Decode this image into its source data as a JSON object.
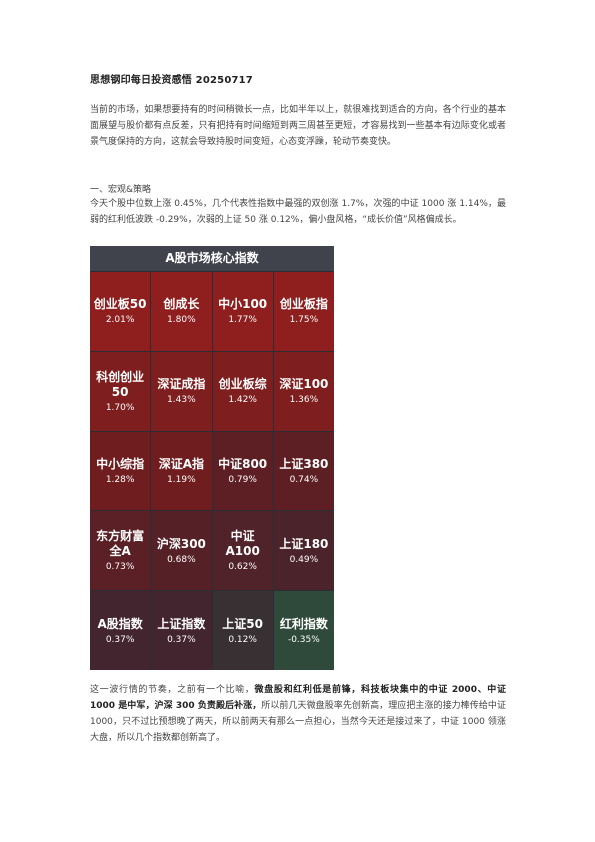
{
  "document": {
    "title": "思想钢印每日投资感悟 20250717",
    "intro": "当前的市场，如果想要持有的时间稍微长一点，比如半年以上，就很难找到适合的方向，各个行业的基本面展望与股价都有点反差，只有把持有时间缩短到两三周甚至更短，才容易找到一些基本有边际变化或者景气度保持的方向，这就会导致持股时间变短，心态变浮躁，轮动节奏变快。",
    "section_heading": "一、宏观&策略",
    "section_text": "今天个股中位数上涨 0.45%，几个代表性指数中最强的双创涨 1.7%，次强的中证 1000 涨 1.14%，最弱的红利低波跌 -0.29%，次弱的上证 50 涨 0.12%，偏小盘风格，“成长价值”风格偏成长。",
    "closing_lead": "这一波行情的节奏，之前有一个比喻，",
    "closing_bold": "微盘股和红利低是前锋，科技板块集中的中证 2000、中证 1000 是中军，沪深 300 负责殿后补涨，",
    "closing_tail": "所以前几天微盘股率先创新高，理应把主涨的接力棒传给中证 1000，只不过比预想晚了两天，所以前两天有那么一点担心，当然今天还是接过来了，中证 1000 领涨大盘，所以几个指数都创新高了。"
  },
  "heatmap": {
    "title": "A股市场核心指数",
    "cells": [
      {
        "name": "创业板50",
        "pct": "2.01%",
        "color": "#8e1f1e"
      },
      {
        "name": "创成长",
        "pct": "1.80%",
        "color": "#8e1f1e"
      },
      {
        "name": "中小100",
        "pct": "1.77%",
        "color": "#8e1f1e"
      },
      {
        "name": "创业板指",
        "pct": "1.75%",
        "color": "#8e1f1e"
      },
      {
        "name": "科创创业50",
        "pct": "1.70%",
        "color": "#7f1e1e"
      },
      {
        "name": "深证成指",
        "pct": "1.43%",
        "color": "#7f1e1e"
      },
      {
        "name": "创业板综",
        "pct": "1.42%",
        "color": "#7f1e1e"
      },
      {
        "name": "深证100",
        "pct": "1.36%",
        "color": "#7f1e1e"
      },
      {
        "name": "中小综指",
        "pct": "1.28%",
        "color": "#701d1f"
      },
      {
        "name": "深证A指",
        "pct": "1.19%",
        "color": "#701d1f"
      },
      {
        "name": "中证800",
        "pct": "0.79%",
        "color": "#5e1f24"
      },
      {
        "name": "上证380",
        "pct": "0.74%",
        "color": "#5e1f24"
      },
      {
        "name": "东方财富全A",
        "pct": "0.73%",
        "color": "#5a2025"
      },
      {
        "name": "沪深300",
        "pct": "0.68%",
        "color": "#552127"
      },
      {
        "name": "中证A100",
        "pct": "0.62%",
        "color": "#502229"
      },
      {
        "name": "上证180",
        "pct": "0.49%",
        "color": "#4a232b"
      },
      {
        "name": "A股指数",
        "pct": "0.37%",
        "color": "#42252e"
      },
      {
        "name": "上证指数",
        "pct": "0.37%",
        "color": "#42252e"
      },
      {
        "name": "上证50",
        "pct": "0.12%",
        "color": "#383032"
      },
      {
        "name": "红利指数",
        "pct": "-0.35%",
        "color": "#2f4a3a"
      }
    ]
  }
}
